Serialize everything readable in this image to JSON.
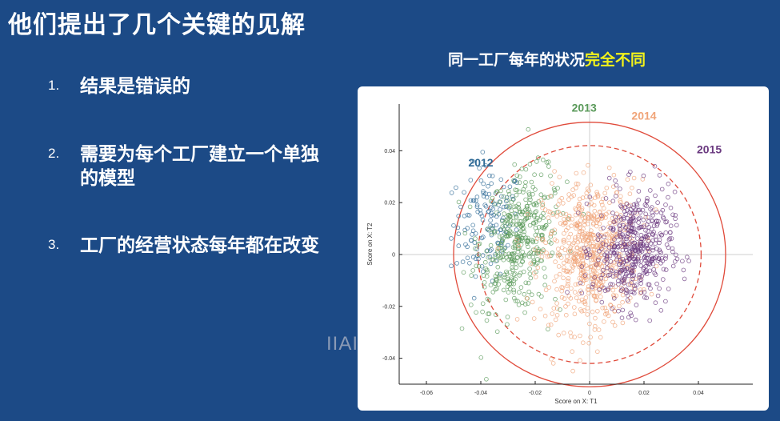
{
  "slide": {
    "title": "他们提出了几个关键的见解",
    "points": [
      {
        "num": "1.",
        "text": "结果是错误的"
      },
      {
        "num": "2.",
        "text": "需要为每个工厂建立一个单独的模型"
      },
      {
        "num": "3.",
        "text": "工厂的经营状态每年都在改变"
      }
    ],
    "chart_heading_prefix": "同一工厂每年的状况",
    "chart_heading_highlight": "完全不同",
    "watermark": "IIAI"
  },
  "colors": {
    "background": "#1c4a86",
    "highlight": "#f2f21a",
    "series_2012": "#2e6a96",
    "series_2013": "#5a9a5a",
    "series_2014": "#f0a478",
    "series_2015": "#6b3a80",
    "ellipse": "#e04a3a"
  },
  "chart_data": {
    "type": "scatter",
    "xlabel": "Score on X: T1",
    "ylabel": "Score on X: T2",
    "xlim": [
      -0.07,
      0.06
    ],
    "ylim": [
      -0.05,
      0.058
    ],
    "xticks": [
      -0.06,
      -0.04,
      -0.02,
      0,
      0.02,
      0.04
    ],
    "yticks": [
      -0.04,
      -0.02,
      0,
      0.02,
      0.04
    ],
    "tick_labels_x": [
      "-0.06",
      "-0.04",
      "-0.02",
      "0",
      "0.02",
      "0.04"
    ],
    "tick_labels_y": [
      "-0.04",
      "-0.02",
      "0",
      "0.02",
      "0.04"
    ],
    "grid": false,
    "series": [
      {
        "name": "2012",
        "center": [
          -0.038,
          0.012
        ],
        "spread": [
          0.006,
          0.02
        ],
        "count": 140,
        "tilt": 0.3
      },
      {
        "name": "2013",
        "center": [
          -0.026,
          0.005
        ],
        "spread": [
          0.007,
          0.024
        ],
        "count": 420,
        "tilt": 0.5
      },
      {
        "name": "2014",
        "center": [
          0.0,
          0.0
        ],
        "spread": [
          0.009,
          0.026
        ],
        "count": 620,
        "tilt": 0.15
      },
      {
        "name": "2015",
        "center": [
          0.016,
          0.002
        ],
        "spread": [
          0.007,
          0.02
        ],
        "count": 480,
        "tilt": 0.2
      }
    ],
    "ellipse_outer": {
      "rx": 0.05,
      "ry": 0.051
    },
    "ellipse_inner": {
      "rx": 0.041,
      "ry": 0.042
    },
    "series_label_positions": {
      "2012": [
        -0.04,
        0.034
      ],
      "2013": [
        -0.002,
        0.055
      ],
      "2014": [
        0.02,
        0.052
      ],
      "2015": [
        0.044,
        0.039
      ]
    }
  }
}
